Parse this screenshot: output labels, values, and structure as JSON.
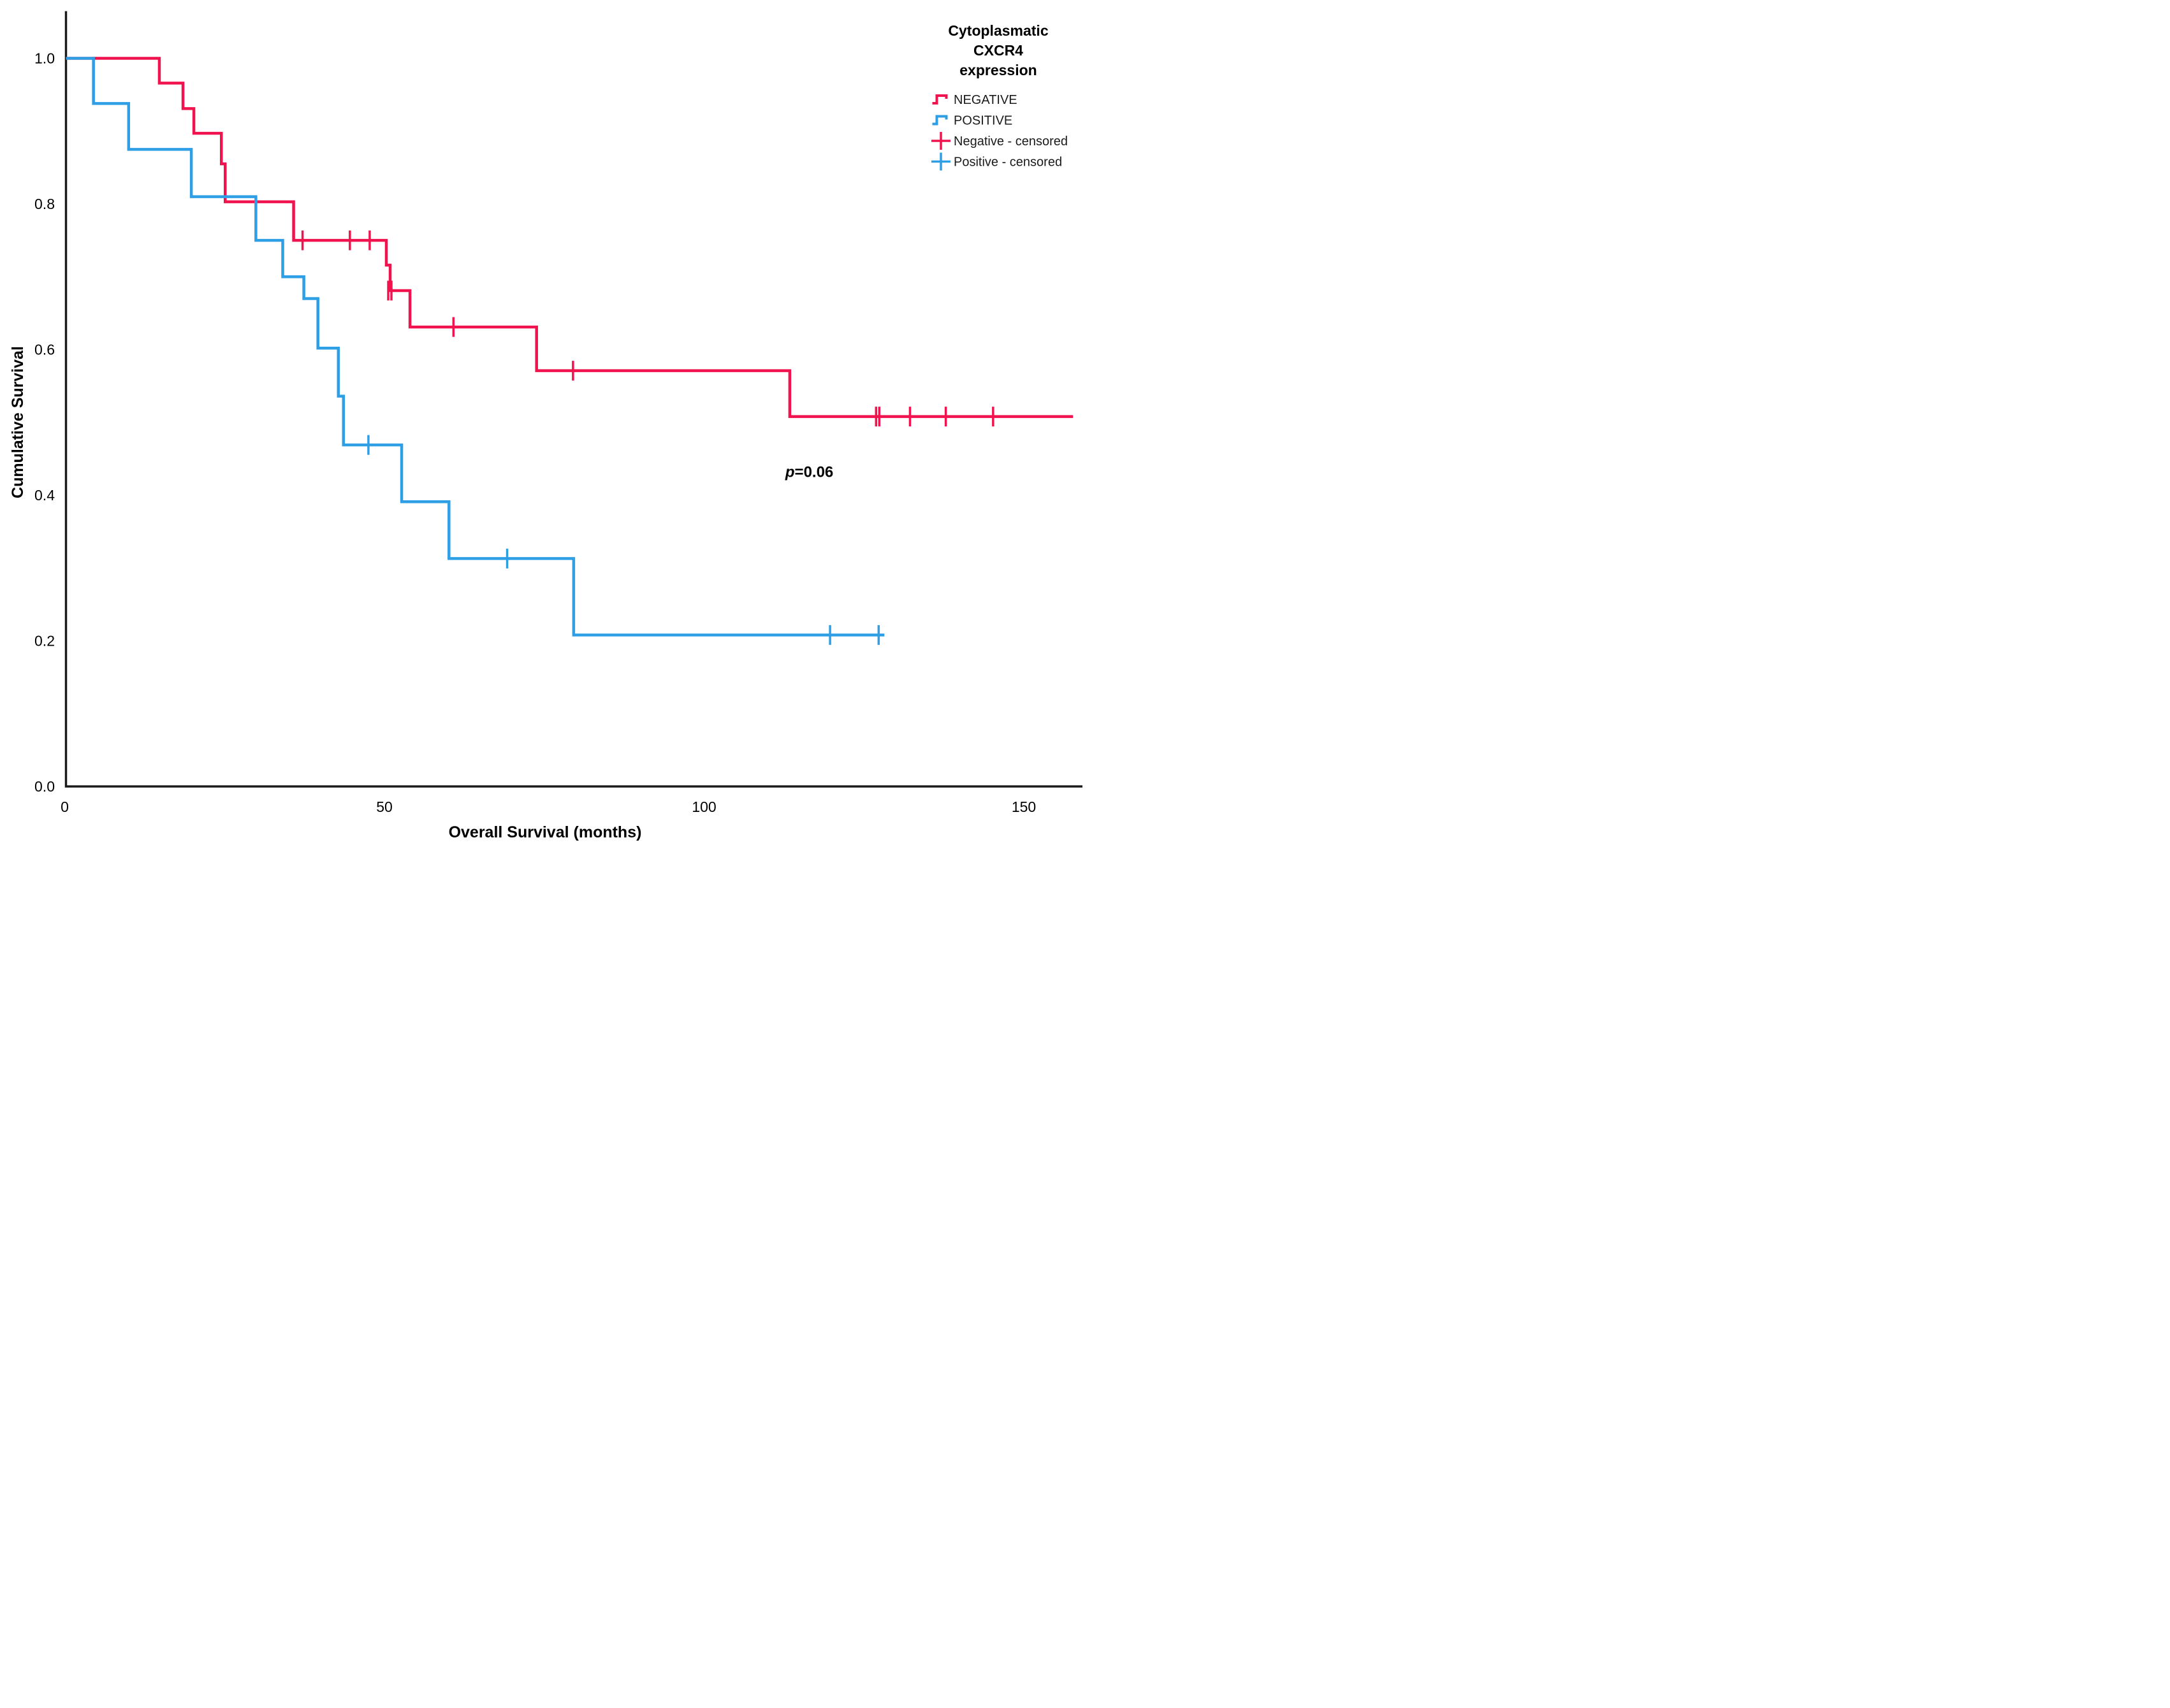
{
  "figure": {
    "background": "#ffffff",
    "axis_color": "#1a1a1a",
    "p_annotation": "p=0.06"
  },
  "chart_data": {
    "type": "line",
    "subtype": "kaplan-meier-step",
    "title": "",
    "xlabel": "Overall Survival (months)",
    "ylabel": "Cumulative Survival",
    "xlim": [
      0,
      159
    ],
    "ylim": [
      0.0,
      1.0
    ],
    "x_ticks": [
      0,
      50,
      100,
      150
    ],
    "y_ticks": [
      "0.0",
      "0.2",
      "0.4",
      "0.6",
      "0.8",
      "1.0"
    ],
    "grid": false,
    "legend_position": "top-right",
    "annotation": {
      "text": "p=0.06",
      "x_month": 112.5,
      "y_value": 0.425,
      "italic_first_char": true
    },
    "legend": {
      "title": "Cytoplasmatic\nCXCR4\nexpression",
      "entries": [
        {
          "label": "NEGATIVE",
          "symbol": "step-line",
          "color": "#F0134D"
        },
        {
          "label": "POSITIVE",
          "symbol": "step-line",
          "color": "#2E9EE5"
        },
        {
          "label": "Negative - censored",
          "symbol": "plus",
          "color": "#F0134D"
        },
        {
          "label": "Positive - censored",
          "symbol": "plus",
          "color": "#2E9EE5"
        }
      ]
    },
    "series": [
      {
        "name": "NEGATIVE",
        "color": "#F0134D",
        "end_month": 157.5,
        "steps": [
          [
            0,
            1.0
          ],
          [
            14.6,
            0.966
          ],
          [
            18.3,
            0.931
          ],
          [
            20.0,
            0.897
          ],
          [
            24.3,
            0.855
          ],
          [
            24.9,
            0.803
          ],
          [
            35.6,
            0.75
          ],
          [
            50.1,
            0.716
          ],
          [
            50.7,
            0.681
          ],
          [
            53.8,
            0.631
          ],
          [
            73.6,
            0.571
          ],
          [
            113.2,
            0.508
          ]
        ],
        "censored": [
          [
            37.0,
            0.75
          ],
          [
            44.4,
            0.75
          ],
          [
            47.5,
            0.75
          ],
          [
            50.4,
            0.681
          ],
          [
            50.9,
            0.681
          ],
          [
            60.6,
            0.631
          ],
          [
            79.3,
            0.571
          ],
          [
            126.7,
            0.508
          ],
          [
            127.2,
            0.508
          ],
          [
            132.0,
            0.508
          ],
          [
            137.6,
            0.508
          ],
          [
            145.0,
            0.508
          ]
        ]
      },
      {
        "name": "POSITIVE",
        "color": "#2E9EE5",
        "end_month": 128.0,
        "steps": [
          [
            0,
            1.0
          ],
          [
            4.3,
            0.938
          ],
          [
            9.8,
            0.875
          ],
          [
            19.6,
            0.81
          ],
          [
            29.7,
            0.75
          ],
          [
            33.9,
            0.7
          ],
          [
            37.2,
            0.67
          ],
          [
            39.4,
            0.602
          ],
          [
            42.6,
            0.536
          ],
          [
            43.4,
            0.469
          ],
          [
            52.5,
            0.391
          ],
          [
            59.9,
            0.313
          ],
          [
            79.4,
            0.208
          ]
        ],
        "censored": [
          [
            47.3,
            0.469
          ],
          [
            69.0,
            0.313
          ],
          [
            119.5,
            0.208
          ],
          [
            127.1,
            0.208
          ]
        ]
      }
    ]
  }
}
